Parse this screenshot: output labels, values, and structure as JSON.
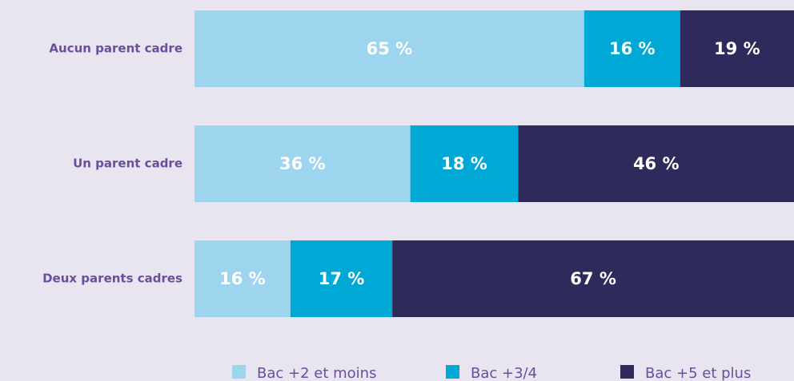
{
  "chart_data": {
    "type": "stacked_bar_horizontal",
    "categories": [
      "Aucun parent cadre",
      "Un parent cadre",
      "Deux parents cadres"
    ],
    "series": [
      {
        "name": "Bac +2 et moins",
        "color": "#9dd5ee",
        "values": [
          65,
          36,
          16
        ],
        "value_labels": [
          "65 %",
          "36 %",
          "16 %"
        ]
      },
      {
        "name": "Bac +3/4",
        "color": "#00a8d5",
        "values": [
          16,
          18,
          17
        ],
        "value_labels": [
          "16 %",
          "18 %",
          "17 %"
        ]
      },
      {
        "name": "Bac +5 et plus",
        "color": "#2f2a5c",
        "values": [
          19,
          46,
          67
        ],
        "value_labels": [
          "19 %",
          "46 %",
          "67 %"
        ]
      }
    ],
    "legend": "bottom"
  }
}
